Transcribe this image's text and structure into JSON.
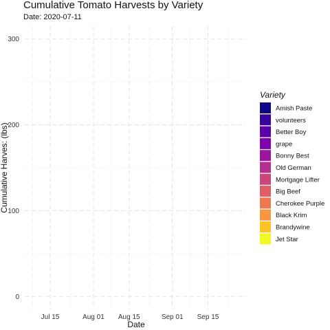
{
  "chart_data": {
    "type": "line",
    "title": "Cumulative Tomato Harvests by Variety",
    "subtitle": "Date: 2020-07-11",
    "xlabel": "Date",
    "ylabel": "Cumulative Harves: (lbs)",
    "x_ticks": [
      {
        "label": "Jul 15",
        "date": "2020-07-15"
      },
      {
        "label": "Aug 01",
        "date": "2020-08-01"
      },
      {
        "label": "Aug 15",
        "date": "2020-08-15"
      },
      {
        "label": "Sep 01",
        "date": "2020-09-01"
      },
      {
        "label": "Sep 15",
        "date": "2020-09-15"
      }
    ],
    "x_minor_dates": [
      "2020-07-08",
      "2020-07-23",
      "2020-08-08",
      "2020-08-23",
      "2020-09-08",
      "2020-09-23"
    ],
    "xlim": [
      "2020-07-05",
      "2020-09-30"
    ],
    "y_ticks": [
      0,
      100,
      200,
      300
    ],
    "y_minor": [
      50,
      150,
      250
    ],
    "ylim": [
      -15,
      315
    ],
    "grid": true,
    "legend": {
      "title": "Variety",
      "position": "right",
      "entries": [
        {
          "name": "Amish Paste",
          "color": "#0d0887"
        },
        {
          "name": "volunteers",
          "color": "#3a049a"
        },
        {
          "name": "Better Boy",
          "color": "#5c01a6"
        },
        {
          "name": "grape",
          "color": "#7e03a8"
        },
        {
          "name": "Bonny Best",
          "color": "#9c179e"
        },
        {
          "name": "Old German",
          "color": "#b52f8c"
        },
        {
          "name": "Mortgage Lifter",
          "color": "#cc4778"
        },
        {
          "name": "Big Beef",
          "color": "#de5f65"
        },
        {
          "name": "Cherokee Purple",
          "color": "#ed7953"
        },
        {
          "name": "Black Krim",
          "color": "#f89540"
        },
        {
          "name": "Brandywine",
          "color": "#fdc328"
        },
        {
          "name": "Jet Star",
          "color": "#f0f921"
        }
      ]
    },
    "series": []
  }
}
